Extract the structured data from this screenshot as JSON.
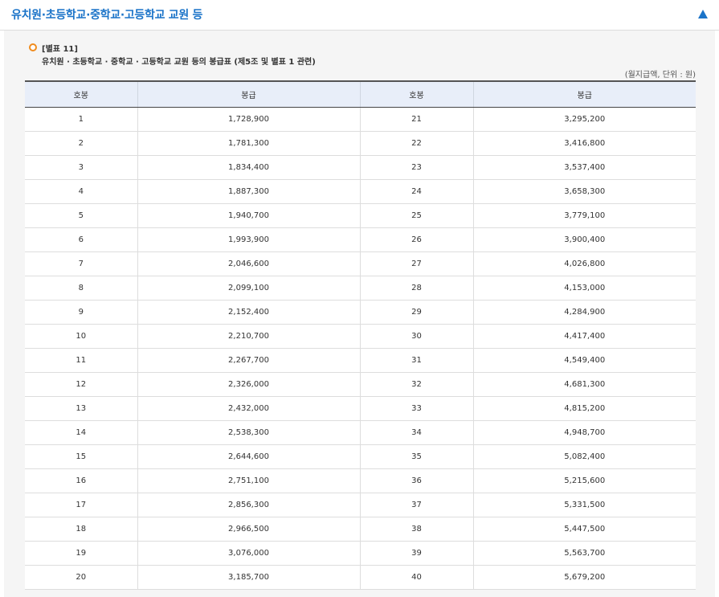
{
  "header": {
    "title": "유치원·초등학교·중학교·고등학교 교원 등",
    "toggle_icon": "triangle-up-icon"
  },
  "table_info": {
    "label": "[별표 11]",
    "caption": "유치원 · 초등학교 · 중학교 · 고등학교 교원 등의 봉급표 (제5조 및 별표 1 관련)",
    "unit_note": "(월지급액, 단위 : 원)",
    "bullet_icon": "circle-bullet-icon",
    "bullet_color": "#f08c1e"
  },
  "columns": [
    "호봉",
    "봉급",
    "호봉",
    "봉급"
  ],
  "rows": [
    [
      "1",
      "1,728,900",
      "21",
      "3,295,200"
    ],
    [
      "2",
      "1,781,300",
      "22",
      "3,416,800"
    ],
    [
      "3",
      "1,834,400",
      "23",
      "3,537,400"
    ],
    [
      "4",
      "1,887,300",
      "24",
      "3,658,300"
    ],
    [
      "5",
      "1,940,700",
      "25",
      "3,779,100"
    ],
    [
      "6",
      "1,993,900",
      "26",
      "3,900,400"
    ],
    [
      "7",
      "2,046,600",
      "27",
      "4,026,800"
    ],
    [
      "8",
      "2,099,100",
      "28",
      "4,153,000"
    ],
    [
      "9",
      "2,152,400",
      "29",
      "4,284,900"
    ],
    [
      "10",
      "2,210,700",
      "30",
      "4,417,400"
    ],
    [
      "11",
      "2,267,700",
      "31",
      "4,549,400"
    ],
    [
      "12",
      "2,326,000",
      "32",
      "4,681,300"
    ],
    [
      "13",
      "2,432,000",
      "33",
      "4,815,200"
    ],
    [
      "14",
      "2,538,300",
      "34",
      "4,948,700"
    ],
    [
      "15",
      "2,644,600",
      "35",
      "5,082,400"
    ],
    [
      "16",
      "2,751,100",
      "36",
      "5,215,600"
    ],
    [
      "17",
      "2,856,300",
      "37",
      "5,331,500"
    ],
    [
      "18",
      "2,966,500",
      "38",
      "5,447,500"
    ],
    [
      "19",
      "3,076,000",
      "39",
      "5,563,700"
    ],
    [
      "20",
      "3,185,700",
      "40",
      "5,679,200"
    ]
  ],
  "colors": {
    "accent": "#1a73c8",
    "header_bg": "#e8eef9",
    "panel_bg": "#f5f5f5"
  }
}
